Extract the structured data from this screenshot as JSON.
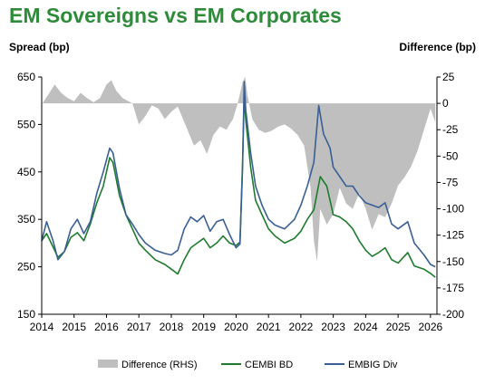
{
  "chart_data": {
    "type": "line",
    "title": "EM Sovereigns vs EM Corporates",
    "ylabel_left": "Spread (bp)",
    "ylabel_right": "Difference (bp)",
    "ylim_left": [
      150,
      650
    ],
    "yticks_left": [
      150,
      250,
      350,
      450,
      550,
      650
    ],
    "ylim_right": [
      -200,
      25
    ],
    "yticks_right": [
      -200,
      -175,
      -150,
      -125,
      -100,
      -75,
      -50,
      -25,
      0,
      25
    ],
    "xlim": [
      2014,
      2026.2
    ],
    "xticks": [
      2014,
      2015,
      2016,
      2017,
      2018,
      2019,
      2020,
      2021,
      2022,
      2023,
      2024,
      2025,
      2026
    ],
    "grid": false,
    "legend_position": "bottom",
    "series": [
      {
        "name": "Difference (RHS)",
        "axis": "right",
        "kind": "area",
        "color": "#bfbfbf",
        "points": [
          [
            2014.0,
            -1
          ],
          [
            2014.2,
            8
          ],
          [
            2014.4,
            18
          ],
          [
            2014.6,
            10
          ],
          [
            2014.8,
            5
          ],
          [
            2015.0,
            2
          ],
          [
            2015.2,
            10
          ],
          [
            2015.4,
            5
          ],
          [
            2015.6,
            1
          ],
          [
            2015.8,
            5
          ],
          [
            2016.0,
            18
          ],
          [
            2016.15,
            22
          ],
          [
            2016.3,
            12
          ],
          [
            2016.5,
            5
          ],
          [
            2016.8,
            0
          ],
          [
            2017.0,
            -20
          ],
          [
            2017.2,
            -12
          ],
          [
            2017.4,
            -2
          ],
          [
            2017.6,
            -5
          ],
          [
            2017.8,
            -15
          ],
          [
            2018.0,
            -8
          ],
          [
            2018.2,
            -3
          ],
          [
            2018.5,
            -25
          ],
          [
            2018.7,
            -40
          ],
          [
            2018.9,
            -35
          ],
          [
            2019.1,
            -48
          ],
          [
            2019.3,
            -30
          ],
          [
            2019.5,
            -22
          ],
          [
            2019.7,
            -25
          ],
          [
            2019.9,
            -15
          ],
          [
            2020.05,
            0
          ],
          [
            2020.2,
            20
          ],
          [
            2020.28,
            25
          ],
          [
            2020.35,
            8
          ],
          [
            2020.5,
            -15
          ],
          [
            2020.7,
            -25
          ],
          [
            2020.9,
            -28
          ],
          [
            2021.1,
            -26
          ],
          [
            2021.3,
            -22
          ],
          [
            2021.5,
            -20
          ],
          [
            2021.7,
            -24
          ],
          [
            2021.9,
            -30
          ],
          [
            2022.1,
            -40
          ],
          [
            2022.3,
            -80
          ],
          [
            2022.4,
            -130
          ],
          [
            2022.5,
            -150
          ],
          [
            2022.6,
            -100
          ],
          [
            2022.8,
            -115
          ],
          [
            2023.0,
            -105
          ],
          [
            2023.2,
            -80
          ],
          [
            2023.4,
            -95
          ],
          [
            2023.6,
            -100
          ],
          [
            2023.8,
            -85
          ],
          [
            2024.0,
            -100
          ],
          [
            2024.2,
            -120
          ],
          [
            2024.4,
            -105
          ],
          [
            2024.6,
            -108
          ],
          [
            2024.8,
            -95
          ],
          [
            2025.0,
            -78
          ],
          [
            2025.2,
            -70
          ],
          [
            2025.4,
            -60
          ],
          [
            2025.6,
            -45
          ],
          [
            2025.8,
            -25
          ],
          [
            2026.0,
            -5
          ],
          [
            2026.15,
            -18
          ]
        ]
      },
      {
        "name": "CEMBI BD",
        "axis": "left",
        "kind": "line",
        "color": "#1e7b2e",
        "points": [
          [
            2014.0,
            305
          ],
          [
            2014.15,
            320
          ],
          [
            2014.35,
            292
          ],
          [
            2014.5,
            270
          ],
          [
            2014.7,
            282
          ],
          [
            2014.9,
            312
          ],
          [
            2015.1,
            322
          ],
          [
            2015.3,
            305
          ],
          [
            2015.5,
            340
          ],
          [
            2015.7,
            385
          ],
          [
            2015.9,
            420
          ],
          [
            2016.1,
            480
          ],
          [
            2016.2,
            470
          ],
          [
            2016.4,
            400
          ],
          [
            2016.6,
            360
          ],
          [
            2016.8,
            330
          ],
          [
            2017.0,
            300
          ],
          [
            2017.2,
            285
          ],
          [
            2017.5,
            265
          ],
          [
            2017.8,
            255
          ],
          [
            2018.0,
            245
          ],
          [
            2018.2,
            235
          ],
          [
            2018.4,
            265
          ],
          [
            2018.6,
            290
          ],
          [
            2018.8,
            300
          ],
          [
            2019.0,
            310
          ],
          [
            2019.2,
            290
          ],
          [
            2019.4,
            300
          ],
          [
            2019.6,
            315
          ],
          [
            2019.8,
            300
          ],
          [
            2020.0,
            295
          ],
          [
            2020.12,
            302
          ],
          [
            2020.2,
            470
          ],
          [
            2020.25,
            610
          ],
          [
            2020.3,
            560
          ],
          [
            2020.45,
            460
          ],
          [
            2020.6,
            390
          ],
          [
            2020.8,
            360
          ],
          [
            2021.0,
            330
          ],
          [
            2021.2,
            315
          ],
          [
            2021.5,
            300
          ],
          [
            2021.8,
            310
          ],
          [
            2022.0,
            325
          ],
          [
            2022.2,
            350
          ],
          [
            2022.4,
            370
          ],
          [
            2022.6,
            440
          ],
          [
            2022.8,
            420
          ],
          [
            2023.0,
            360
          ],
          [
            2023.2,
            355
          ],
          [
            2023.4,
            345
          ],
          [
            2023.6,
            330
          ],
          [
            2023.8,
            305
          ],
          [
            2024.0,
            285
          ],
          [
            2024.2,
            272
          ],
          [
            2024.4,
            280
          ],
          [
            2024.6,
            290
          ],
          [
            2024.8,
            265
          ],
          [
            2025.0,
            258
          ],
          [
            2025.3,
            280
          ],
          [
            2025.5,
            252
          ],
          [
            2025.8,
            245
          ],
          [
            2026.0,
            236
          ],
          [
            2026.15,
            228
          ]
        ]
      },
      {
        "name": "EMBIG Div",
        "axis": "left",
        "kind": "line",
        "color": "#3a5f94",
        "points": [
          [
            2014.0,
            305
          ],
          [
            2014.15,
            345
          ],
          [
            2014.35,
            305
          ],
          [
            2014.5,
            265
          ],
          [
            2014.7,
            282
          ],
          [
            2014.9,
            330
          ],
          [
            2015.1,
            350
          ],
          [
            2015.3,
            320
          ],
          [
            2015.5,
            345
          ],
          [
            2015.7,
            405
          ],
          [
            2015.9,
            450
          ],
          [
            2016.1,
            500
          ],
          [
            2016.2,
            490
          ],
          [
            2016.4,
            415
          ],
          [
            2016.6,
            360
          ],
          [
            2016.8,
            340
          ],
          [
            2017.0,
            318
          ],
          [
            2017.2,
            300
          ],
          [
            2017.5,
            285
          ],
          [
            2017.8,
            278
          ],
          [
            2018.0,
            275
          ],
          [
            2018.2,
            285
          ],
          [
            2018.4,
            330
          ],
          [
            2018.6,
            355
          ],
          [
            2018.8,
            345
          ],
          [
            2019.0,
            358
          ],
          [
            2019.2,
            325
          ],
          [
            2019.4,
            345
          ],
          [
            2019.6,
            350
          ],
          [
            2019.8,
            318
          ],
          [
            2020.0,
            290
          ],
          [
            2020.12,
            298
          ],
          [
            2020.2,
            460
          ],
          [
            2020.25,
            640
          ],
          [
            2020.3,
            580
          ],
          [
            2020.45,
            490
          ],
          [
            2020.6,
            420
          ],
          [
            2020.8,
            380
          ],
          [
            2021.0,
            350
          ],
          [
            2021.2,
            338
          ],
          [
            2021.5,
            330
          ],
          [
            2021.8,
            350
          ],
          [
            2022.0,
            380
          ],
          [
            2022.2,
            420
          ],
          [
            2022.4,
            470
          ],
          [
            2022.55,
            590
          ],
          [
            2022.7,
            530
          ],
          [
            2022.9,
            500
          ],
          [
            2023.0,
            460
          ],
          [
            2023.2,
            440
          ],
          [
            2023.4,
            420
          ],
          [
            2023.6,
            420
          ],
          [
            2023.8,
            400
          ],
          [
            2024.0,
            385
          ],
          [
            2024.2,
            380
          ],
          [
            2024.4,
            375
          ],
          [
            2024.6,
            385
          ],
          [
            2024.8,
            340
          ],
          [
            2025.0,
            330
          ],
          [
            2025.3,
            345
          ],
          [
            2025.5,
            300
          ],
          [
            2025.8,
            275
          ],
          [
            2026.0,
            255
          ],
          [
            2026.15,
            250
          ]
        ]
      }
    ]
  }
}
